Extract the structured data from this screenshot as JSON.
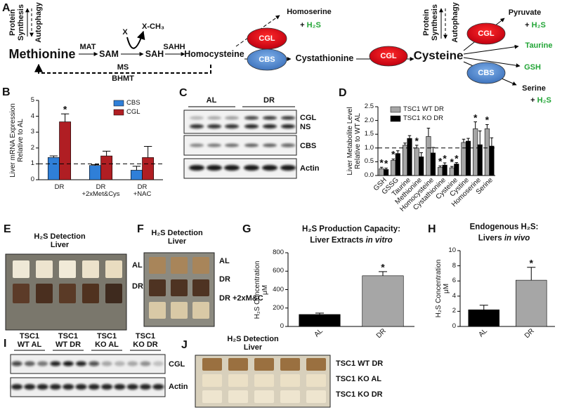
{
  "panel_labels": [
    "A",
    "B",
    "C",
    "D",
    "E",
    "F",
    "G",
    "H",
    "I",
    "J"
  ],
  "pathway": {
    "protein_synthesis_1": "Protein\nSynthesis",
    "autophagy_1": "Autophagy",
    "methionine": "Methionine",
    "mat": "MAT",
    "sam": "SAM",
    "x": "X",
    "x_ch3": "X-CH₃",
    "sah": "SAH",
    "sahh": "SAHH",
    "homocysteine": "Homocysteine",
    "cgl_1": "CGL",
    "cbs_1": "CBS",
    "homoserine": "Homoserine",
    "homoserine_h2s": {
      "sign": "+",
      "gas": "H₂S"
    },
    "cystathionine": "Cystathionine",
    "cgl_2": "CGL",
    "cysteine": "Cysteine",
    "protein_synthesis_2": "Protein\nSynthesis",
    "autophagy_2": "Autophagy",
    "cgl_3": "CGL",
    "cbs_2": "CBS",
    "pyruvate": "Pyruvate",
    "pyruvate_h2s": {
      "sign": "+",
      "gas": "H₂S"
    },
    "taurine": "Taurine",
    "gsh": "GSH",
    "serine": "Serine",
    "serine_h2s": {
      "sign": "+",
      "gas": "H₂S"
    },
    "ms": "MS",
    "bhmt": "BHMT"
  },
  "chart_data": [
    {
      "type": "bar",
      "ylabel": "Liver mRNA Expression\nRelative to AL",
      "categories": [
        "DR",
        "DR\n+2xMet&Cys",
        "DR\n+NAC"
      ],
      "series": [
        {
          "name": "CBS",
          "color": "#2f7fd8",
          "values": [
            1.4,
            0.9,
            0.6
          ],
          "errors": [
            0.1,
            0.05,
            0.25
          ],
          "annotations": [
            null,
            null,
            null
          ]
        },
        {
          "name": "CGL",
          "color": "#b01e23",
          "values": [
            3.65,
            1.5,
            1.4
          ],
          "errors": [
            0.5,
            0.3,
            0.7
          ],
          "annotations": [
            "*",
            null,
            null
          ]
        }
      ],
      "ylim": [
        0,
        5
      ],
      "yticks": [
        0,
        1,
        2,
        3,
        4,
        5
      ],
      "reference_line": 1,
      "legend": "upper right"
    },
    {
      "type": "bar",
      "ylabel": "Liver Metabolite Level\nRelative to WT AL",
      "categories": [
        "GSH",
        "GSSG",
        "Taurine",
        "Methionine",
        "Homocysteine",
        "Cystathionine",
        "Cysteine",
        "Cystine",
        "Homoserine",
        "Serine"
      ],
      "series": [
        {
          "name": "TSC1 WT DR",
          "color": "#a6a6a6",
          "values": [
            0.25,
            0.55,
            1.1,
            1.0,
            1.42,
            0.3,
            0.28,
            1.2,
            1.7,
            1.7
          ],
          "errors": [
            0.05,
            0.05,
            0.08,
            0.1,
            0.3,
            0.05,
            0.05,
            0.12,
            0.25,
            0.15
          ],
          "annotations": [
            "*",
            "*",
            null,
            "*",
            null,
            "*",
            "*",
            null,
            "*",
            "*"
          ]
        },
        {
          "name": "TSC1 KO DR",
          "color": "#000000",
          "values": [
            0.22,
            0.8,
            1.35,
            0.68,
            0.82,
            0.38,
            0.42,
            1.25,
            1.12,
            1.07
          ],
          "errors": [
            0.05,
            0.1,
            0.1,
            0.15,
            0.2,
            0.08,
            0.05,
            0.1,
            0.5,
            0.3
          ],
          "annotations": [
            "*",
            null,
            null,
            null,
            null,
            "*",
            "*",
            null,
            null,
            null
          ]
        }
      ],
      "ylim": [
        0,
        2.5
      ],
      "yticks": [
        {
          "value": 0,
          "label": "0.0"
        },
        0.5,
        {
          "value": 1,
          "label": "1.0"
        },
        1.5,
        {
          "value": 2,
          "label": "2.0"
        },
        2.5
      ],
      "reference_line": 1,
      "legend": "upper left"
    },
    {
      "type": "bar",
      "title": "H₂S Production Capacity:",
      "subtitle": [
        "Liver Extracts",
        "in vitro"
      ],
      "ylabel": "H₂S Concentration\nμM",
      "categories": [
        "AL",
        "DR"
      ],
      "values": [
        130,
        550
      ],
      "errors": [
        15,
        45
      ],
      "annotations": [
        null,
        "*"
      ],
      "colors": [
        "#000000",
        "#a6a6a6"
      ],
      "ylim": [
        0,
        800
      ],
      "yticks": [
        0,
        200,
        400,
        600,
        800
      ]
    },
    {
      "type": "bar",
      "title": "Endogenous H₂S:",
      "subtitle": [
        "Livers",
        "in vivo"
      ],
      "ylabel": "H₂S Concentration\nμM",
      "categories": [
        "AL",
        "DR"
      ],
      "values": [
        2.2,
        6.1
      ],
      "errors": [
        0.6,
        1.7
      ],
      "annotations": [
        null,
        "*"
      ],
      "colors": [
        "#000000",
        "#a6a6a6"
      ],
      "ylim": [
        0,
        10
      ],
      "yticks": [
        0,
        2,
        4,
        6,
        8,
        10
      ]
    }
  ],
  "blot_c": {
    "groups": [
      "AL",
      "DR"
    ],
    "labels": [
      "CGL",
      "NS",
      "CBS",
      "Actin"
    ]
  },
  "photo_e": {
    "title": "H₂S Detection\nLiver",
    "rows": [
      "AL",
      "DR"
    ]
  },
  "photo_f": {
    "title": "H₂S Detection\nLiver",
    "rows": [
      "AL",
      "DR",
      "DR +2xM&C"
    ]
  },
  "blot_i": {
    "groups": [
      "TSC1\nWT AL",
      "TSC1\nWT DR",
      "TSC1\nKO AL",
      "TSC1\nKO DR"
    ],
    "labels": [
      "CGL",
      "Actin"
    ]
  },
  "photo_j": {
    "title": "H₂S Detection\nLiver",
    "rows": [
      "TSC1 WT DR",
      "TSC1 KO AL",
      "TSC1 KO DR"
    ]
  }
}
